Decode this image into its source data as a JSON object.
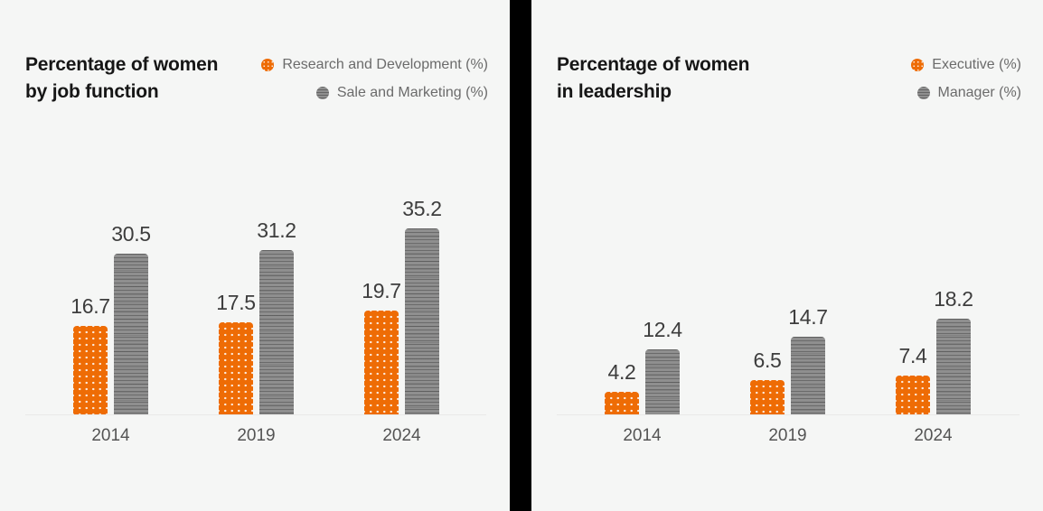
{
  "colors": {
    "accent_orange": "#EE6C05",
    "bar_gray": "#8F8F8F",
    "background": "#f5f6f5",
    "divider": "#000000",
    "title_text": "#161616",
    "value_text": "#3d3d3d",
    "axis_text": "#545454",
    "legend_text": "#6b6b6b"
  },
  "chart_data": [
    {
      "type": "bar",
      "title": "Percentage of women by job function",
      "title_lines": [
        "Percentage of women",
        "by job function"
      ],
      "categories": [
        "2014",
        "2019",
        "2024"
      ],
      "series": [
        {
          "name": "Research and Development (%)",
          "color": "#EE6C05",
          "pattern": "dots",
          "values": [
            16.7,
            17.5,
            19.7
          ]
        },
        {
          "name": "Sale and Marketing (%)",
          "color": "#8F8F8F",
          "pattern": "hlines",
          "values": [
            30.5,
            31.2,
            35.2
          ]
        }
      ],
      "ylim": [
        0,
        40
      ],
      "grid": false,
      "value_labels": true,
      "legend_position": "top-right"
    },
    {
      "type": "bar",
      "title": "Percentage of women in leadership",
      "title_lines": [
        "Percentage of women",
        "in leadership"
      ],
      "categories": [
        "2014",
        "2019",
        "2024"
      ],
      "series": [
        {
          "name": "Executive (%)",
          "color": "#EE6C05",
          "pattern": "dots",
          "values": [
            4.2,
            6.5,
            7.4
          ]
        },
        {
          "name": "Manager (%)",
          "color": "#8F8F8F",
          "pattern": "hlines",
          "values": [
            12.4,
            14.7,
            18.2
          ]
        }
      ],
      "ylim": [
        0,
        40
      ],
      "grid": false,
      "value_labels": true,
      "legend_position": "top-right"
    }
  ]
}
